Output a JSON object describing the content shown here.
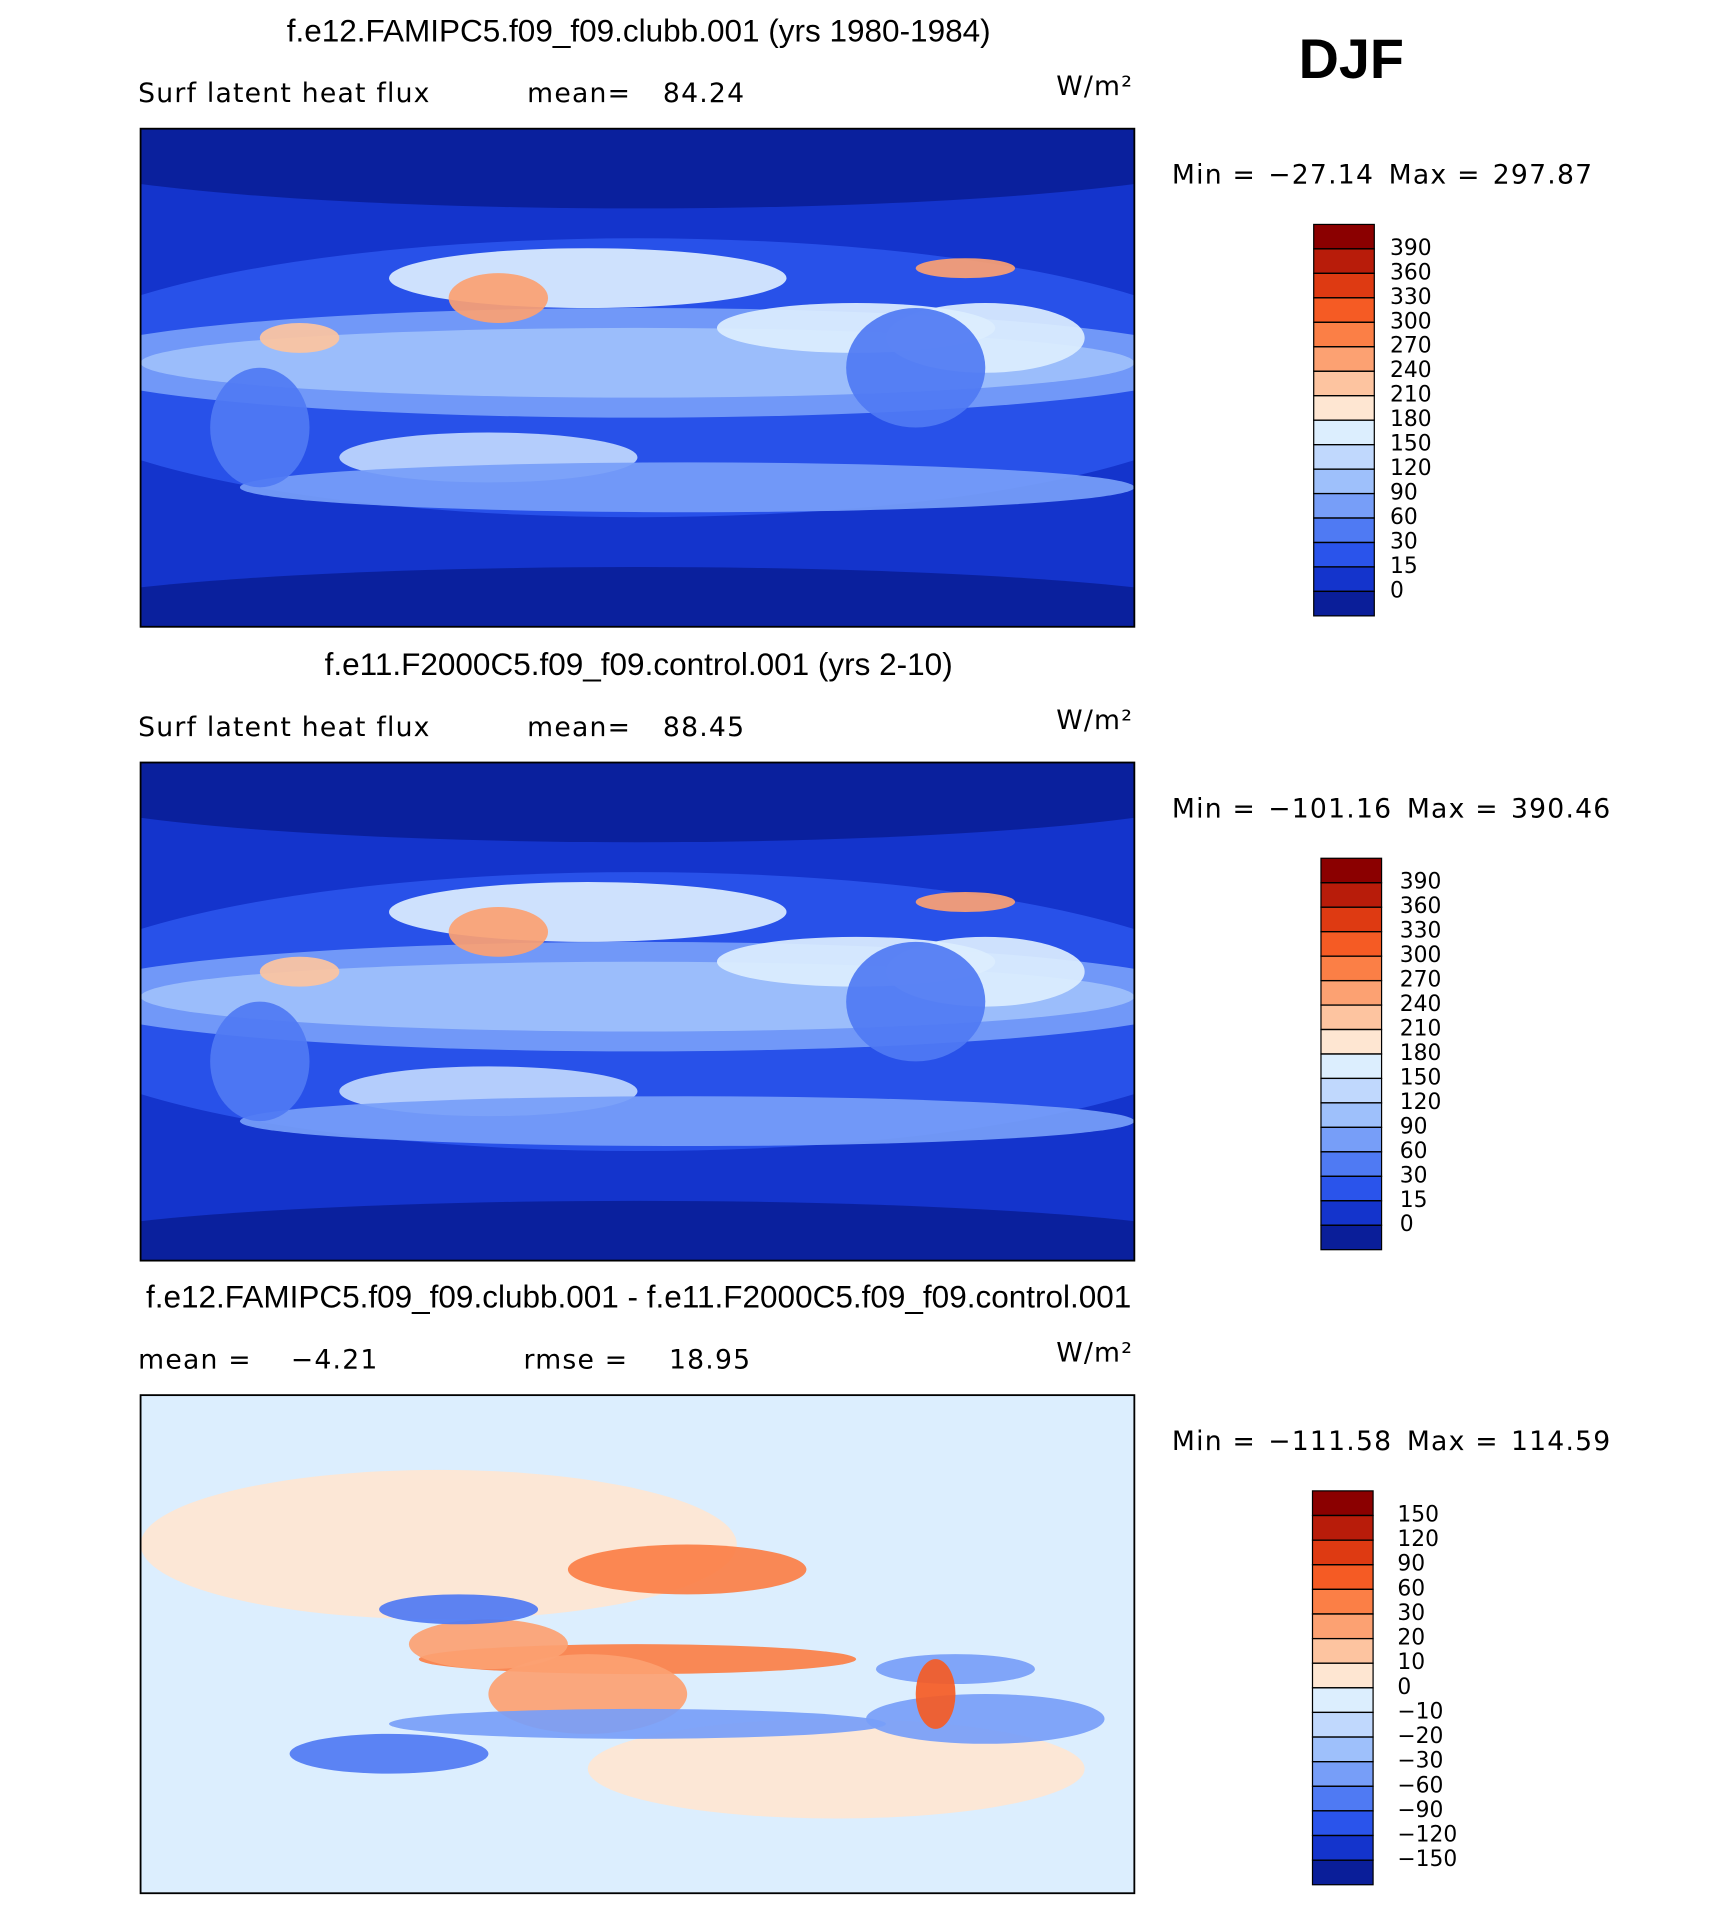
{
  "season": "DJF",
  "chart_data": [
    {
      "type": "contour",
      "title": "f.e12.FAMIPC5.f09_f09.clubb.001 (yrs 1980-1984)",
      "variable": "Surf latent heat flux",
      "units": "W/m²",
      "stats": [
        {
          "name": "mean=",
          "value": 84.24
        }
      ],
      "range": [
        {
          "name": "Min =",
          "value": -27.14,
          "label": "−27.14"
        },
        {
          "name": "Max =",
          "value": 297.87
        }
      ],
      "levels": [
        390,
        360,
        330,
        300,
        270,
        240,
        210,
        180,
        150,
        120,
        90,
        60,
        30,
        15,
        0
      ],
      "colors": [
        "#8b0000",
        "#b81c0a",
        "#de3a12",
        "#f55b24",
        "#fb7f46",
        "#fca172",
        "#fdc4a0",
        "#fee6d2",
        "#dceefe",
        "#c0d8fd",
        "#9ec0fb",
        "#779ef8",
        "#4f7af3",
        "#2a54eb",
        "#1434cc",
        "#0a1e99"
      ]
    },
    {
      "type": "contour",
      "title": "f.e11.F2000C5.f09_f09.control.001 (yrs 2-10)",
      "variable": "Surf latent heat flux",
      "units": "W/m²",
      "stats": [
        {
          "name": "mean=",
          "value": 88.45
        }
      ],
      "range": [
        {
          "name": "Min =",
          "value": -101.16,
          "label": "−101.16"
        },
        {
          "name": "Max =",
          "value": 390.46
        }
      ],
      "levels": [
        390,
        360,
        330,
        300,
        270,
        240,
        210,
        180,
        150,
        120,
        90,
        60,
        30,
        15,
        0
      ],
      "colors": [
        "#8b0000",
        "#b81c0a",
        "#de3a12",
        "#f55b24",
        "#fb7f46",
        "#fca172",
        "#fdc4a0",
        "#fee6d2",
        "#dceefe",
        "#c0d8fd",
        "#9ec0fb",
        "#779ef8",
        "#4f7af3",
        "#2a54eb",
        "#1434cc",
        "#0a1e99"
      ]
    },
    {
      "type": "contour",
      "title": "f.e12.FAMIPC5.f09_f09.clubb.001 - f.e11.F2000C5.f09_f09.control.001",
      "units": "W/m²",
      "stats": [
        {
          "name": "mean =",
          "value": -4.21,
          "label": "−4.21"
        },
        {
          "name": "rmse =",
          "value": 18.95
        }
      ],
      "range": [
        {
          "name": "Min =",
          "value": -111.58,
          "label": "−111.58"
        },
        {
          "name": "Max =",
          "value": 114.59
        }
      ],
      "levels": [
        150,
        120,
        90,
        60,
        30,
        20,
        10,
        0,
        {
          "value": -10,
          "label": "−10"
        },
        {
          "value": -20,
          "label": "−20"
        },
        {
          "value": -30,
          "label": "−30"
        },
        {
          "value": -60,
          "label": "−60"
        },
        {
          "value": -90,
          "label": "−90"
        },
        {
          "value": -120,
          "label": "−120"
        },
        {
          "value": -150,
          "label": "−150"
        }
      ],
      "colors": [
        "#8b0000",
        "#b81c0a",
        "#de3a12",
        "#f55b24",
        "#fb7f46",
        "#fca172",
        "#fdc4a0",
        "#fee6d2",
        "#dceefe",
        "#c0d8fd",
        "#9ec0fb",
        "#779ef8",
        "#4f7af3",
        "#2a54eb",
        "#1434cc",
        "#0a1e99"
      ]
    }
  ]
}
